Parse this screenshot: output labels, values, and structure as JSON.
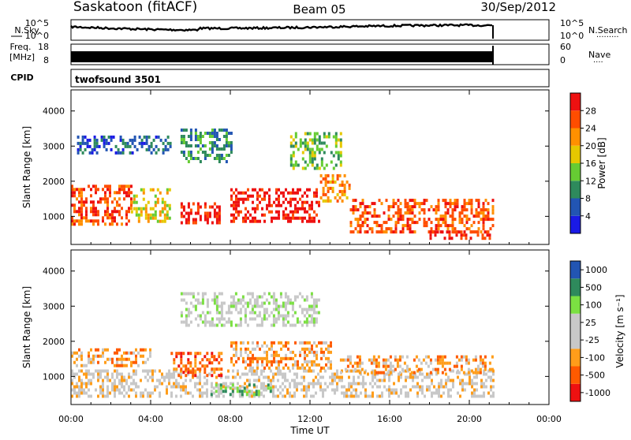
{
  "header": {
    "station": "Saskatoon (fitACF)",
    "beam": "Beam 05",
    "date": "30/Sep/2012"
  },
  "strips": {
    "nsky": {
      "label": "N.Sky",
      "ticks_left": [
        "10^5",
        "10^0"
      ],
      "ticks_right": [
        "10^5",
        "10^0"
      ],
      "right_label": "N.Search",
      "right_marker": "·········"
    },
    "freq": {
      "label_line1": "Freq.",
      "label_line2": "[MHz]",
      "ticks_left": [
        "18",
        "8"
      ],
      "ticks_right": [
        "60",
        "0"
      ],
      "right_label": "Nave",
      "right_marker": "····"
    },
    "cpid": {
      "label": "CPID",
      "value": "twofsound 3501"
    }
  },
  "colors": {
    "power": [
      "#1a1ae6",
      "#2255b3",
      "#2e8a5c",
      "#66cc33",
      "#e6c800",
      "#ff9000",
      "#ff4d00",
      "#ee1111"
    ],
    "velocity": [
      "#ee1111",
      "#ff5a00",
      "#ff9d1a",
      "#c8c8c8",
      "#c8c8c8",
      "#7be042",
      "#2e8a5c",
      "#2255b3"
    ]
  },
  "chart_data": [
    {
      "type": "heatmap",
      "name": "power",
      "ylabel": "Slant Range [km]",
      "yticks": [
        "1000",
        "2000",
        "3000",
        "4000"
      ],
      "ylim": [
        200,
        4600
      ],
      "xlim": [
        "00:00",
        "24:00"
      ],
      "colorbar": {
        "label": "Power [dB]",
        "ticks": [
          "4",
          "8",
          "12",
          "16",
          "20",
          "24",
          "28"
        ],
        "range": [
          0,
          32
        ]
      },
      "bands": [
        {
          "t0": 0.0,
          "t1": 3.0,
          "r0": 800,
          "r1": 1900,
          "level": 6
        },
        {
          "t0": 3.0,
          "t1": 5.0,
          "r0": 900,
          "r1": 1800,
          "level": 4
        },
        {
          "t0": 5.5,
          "t1": 7.5,
          "r0": 800,
          "r1": 1400,
          "level": 7
        },
        {
          "t0": 8.0,
          "t1": 12.5,
          "r0": 900,
          "r1": 1800,
          "level": 7
        },
        {
          "t0": 12.5,
          "t1": 14.0,
          "r0": 1400,
          "r1": 2200,
          "level": 5
        },
        {
          "t0": 14.0,
          "t1": 21.2,
          "r0": 600,
          "r1": 1500,
          "level": 6
        },
        {
          "t0": 18.0,
          "t1": 21.2,
          "r0": 350,
          "r1": 600,
          "level": 7
        },
        {
          "t0": 0.3,
          "t1": 5.0,
          "r0": 2800,
          "r1": 3300,
          "level": 1
        },
        {
          "t0": 5.5,
          "t1": 8.0,
          "r0": 2600,
          "r1": 3500,
          "level": 2
        },
        {
          "t0": 11.0,
          "t1": 13.5,
          "r0": 2400,
          "r1": 3400,
          "level": 3
        }
      ]
    },
    {
      "type": "heatmap",
      "name": "velocity",
      "ylabel": "Slant Range [km]",
      "yticks": [
        "1000",
        "2000",
        "3000",
        "4000"
      ],
      "ylim": [
        200,
        4600
      ],
      "xlabel": "Time UT",
      "xticks": [
        "00:00",
        "04:00",
        "08:00",
        "12:00",
        "16:00",
        "20:00",
        "00:00"
      ],
      "xlim": [
        "00:00",
        "24:00"
      ],
      "colorbar": {
        "label": "Velocity [m s⁻¹]",
        "ticks": [
          "1000",
          "500",
          "100",
          "25",
          "-25",
          "-100",
          "-500",
          "-1000"
        ]
      },
      "bands": [
        {
          "t0": 0.0,
          "t1": 21.2,
          "r0": 400,
          "r1": 1200,
          "level": 3
        },
        {
          "t0": 0.0,
          "t1": 4.0,
          "r0": 1300,
          "r1": 1800,
          "level": 2
        },
        {
          "t0": 5.0,
          "t1": 7.5,
          "r0": 1000,
          "r1": 1700,
          "level": 1
        },
        {
          "t0": 8.0,
          "t1": 13.0,
          "r0": 1200,
          "r1": 2000,
          "level": 2
        },
        {
          "t0": 13.5,
          "t1": 21.2,
          "r0": 1100,
          "r1": 1600,
          "level": 2
        },
        {
          "t0": 5.5,
          "t1": 12.5,
          "r0": 2500,
          "r1": 3400,
          "level": 4
        },
        {
          "t0": 7.0,
          "t1": 10.0,
          "r0": 500,
          "r1": 800,
          "level": 5
        }
      ]
    }
  ]
}
